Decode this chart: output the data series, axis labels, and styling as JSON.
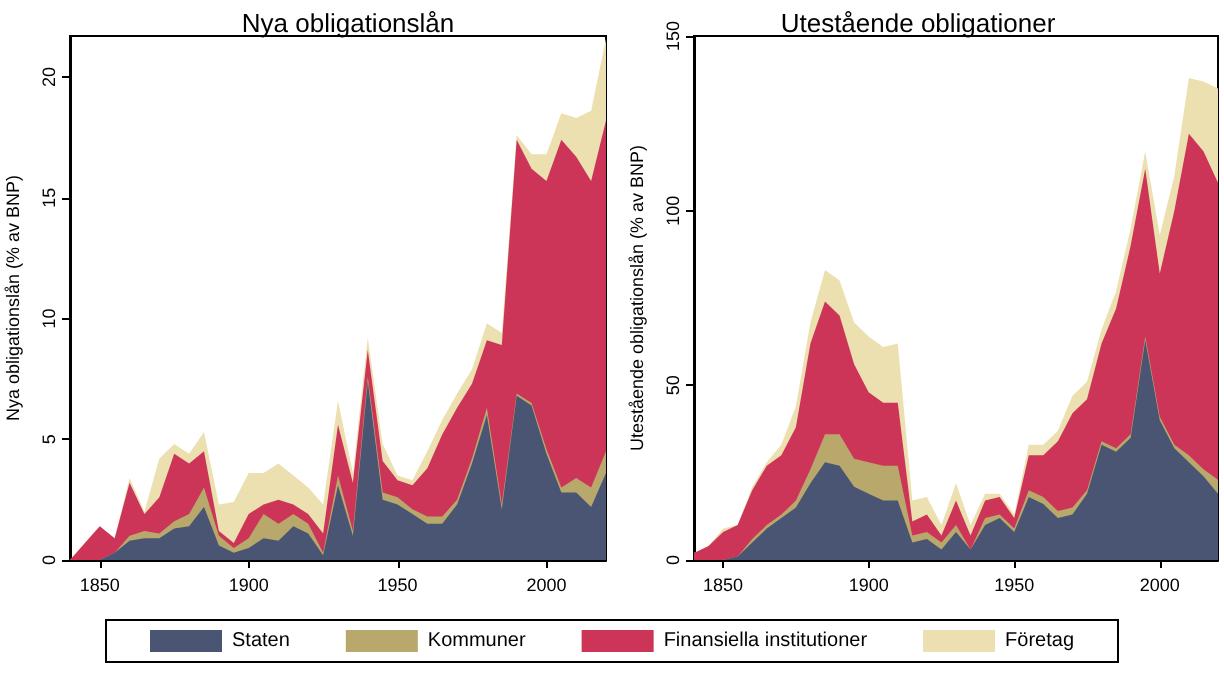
{
  "chart_data": [
    {
      "type": "area",
      "stacked": true,
      "title": "Nya obligationslån",
      "ylabel": "Nya obligationslån (% av BNP)",
      "legend": "bottom",
      "grid": false,
      "x": [
        1840,
        1845,
        1850,
        1855,
        1860,
        1865,
        1870,
        1875,
        1880,
        1885,
        1890,
        1895,
        1900,
        1905,
        1910,
        1915,
        1920,
        1925,
        1930,
        1935,
        1940,
        1945,
        1950,
        1955,
        1960,
        1965,
        1970,
        1975,
        1980,
        1985,
        1990,
        1995,
        2000,
        2005,
        2010,
        2015,
        2020
      ],
      "xlim": [
        1840,
        2020
      ],
      "xticks": [
        1850,
        1900,
        1950,
        2000
      ],
      "ylim": [
        0,
        21.7
      ],
      "yticks": [
        0,
        5,
        10,
        15,
        20
      ],
      "series": [
        {
          "name": "Staten",
          "color": "#4a5574",
          "values": [
            0,
            0,
            0,
            0.3,
            0.8,
            0.9,
            0.9,
            1.3,
            1.4,
            2.2,
            0.6,
            0.3,
            0.5,
            0.9,
            0.8,
            1.4,
            1.1,
            0.2,
            3.1,
            1.0,
            7.4,
            2.5,
            2.3,
            1.9,
            1.5,
            1.5,
            2.3,
            4.0,
            6.0,
            2.1,
            6.8,
            6.4,
            4.4,
            2.8,
            2.8,
            2.2,
            3.6
          ]
        },
        {
          "name": "Kommuner",
          "color": "#b8a86c",
          "values": [
            0,
            0,
            0,
            0,
            0.2,
            0.3,
            0.2,
            0.3,
            0.5,
            0.8,
            0.4,
            0.2,
            0.4,
            1.0,
            0.7,
            0.5,
            0.4,
            0.1,
            0.4,
            0.2,
            0.2,
            0.3,
            0.3,
            0.2,
            0.3,
            0.3,
            0.2,
            0.2,
            0.3,
            0.2,
            0.1,
            0.1,
            0.2,
            0.2,
            0.6,
            0.8,
            0.9
          ]
        },
        {
          "name": "Finansiella institutioner",
          "color": "#cc3558",
          "values": [
            0,
            0.7,
            1.4,
            0.6,
            2.2,
            0.7,
            1.5,
            2.8,
            2.1,
            1.5,
            0.2,
            0.2,
            1.0,
            0.4,
            1.0,
            0.4,
            0.4,
            0.8,
            2.1,
            2.0,
            1.1,
            1.3,
            0.7,
            1.0,
            2.0,
            3.4,
            3.8,
            3.1,
            2.8,
            6.6,
            10.5,
            9.7,
            11.1,
            14.4,
            13.3,
            12.7,
            13.7
          ]
        },
        {
          "name": "Företag",
          "color": "#ecdfb0",
          "values": [
            0,
            0,
            0,
            0,
            0.2,
            0.1,
            1.6,
            0.4,
            0.4,
            0.8,
            1.1,
            1.7,
            1.7,
            1.3,
            1.5,
            1.2,
            1.1,
            1.2,
            1.0,
            0.4,
            0.5,
            0.7,
            0.2,
            0.2,
            0.7,
            0.6,
            0.6,
            0.6,
            0.7,
            0.5,
            0.2,
            0.6,
            1.1,
            1.1,
            1.6,
            2.9,
            3.4
          ]
        }
      ]
    },
    {
      "type": "area",
      "stacked": true,
      "title": "Utestående obligationer",
      "ylabel": "Utestående obligationslån (% av BNP)",
      "legend": "bottom",
      "grid": false,
      "x": [
        1840,
        1845,
        1850,
        1855,
        1860,
        1865,
        1870,
        1875,
        1880,
        1885,
        1890,
        1895,
        1900,
        1905,
        1910,
        1915,
        1920,
        1925,
        1930,
        1935,
        1940,
        1945,
        1950,
        1955,
        1960,
        1965,
        1970,
        1975,
        1980,
        1985,
        1990,
        1995,
        2000,
        2005,
        2010,
        2015,
        2020
      ],
      "xlim": [
        1840,
        2020
      ],
      "xticks": [
        1850,
        1900,
        1950,
        2000
      ],
      "ylim": [
        0,
        150
      ],
      "yticks": [
        0,
        50,
        100,
        150
      ],
      "series": [
        {
          "name": "Staten",
          "color": "#4a5574",
          "values": [
            0,
            0,
            0,
            1,
            5,
            9,
            12,
            15,
            22,
            28,
            27,
            21,
            19,
            17,
            17,
            5,
            6,
            3,
            8,
            3,
            10,
            12,
            8,
            18,
            16,
            12,
            13,
            19,
            33,
            31,
            35,
            63,
            40,
            32,
            28,
            24,
            19
          ]
        },
        {
          "name": "Kommuner",
          "color": "#b8a86c",
          "values": [
            0,
            0,
            0,
            0,
            1,
            1,
            1,
            2,
            4,
            8,
            9,
            8,
            9,
            10,
            10,
            2,
            2,
            2,
            2,
            0,
            2,
            1,
            1,
            2,
            2,
            2,
            2,
            1,
            1,
            1,
            1,
            1,
            1,
            1,
            2,
            2,
            4
          ]
        },
        {
          "name": "Finansiella institutioner",
          "color": "#cc3558",
          "values": [
            2,
            4,
            8,
            9,
            14,
            17,
            17,
            21,
            36,
            38,
            34,
            27,
            20,
            18,
            18,
            4,
            5,
            2,
            7,
            4,
            5,
            5,
            3,
            10,
            12,
            20,
            27,
            26,
            28,
            40,
            54,
            48,
            41,
            67,
            92,
            91,
            85
          ]
        },
        {
          "name": "Företag",
          "color": "#ecdfb0",
          "values": [
            0,
            0,
            1,
            0,
            1,
            1,
            3,
            6,
            6,
            9,
            10,
            12,
            16,
            16,
            17,
            6,
            5,
            3,
            5,
            3,
            2,
            1,
            1,
            3,
            3,
            3,
            5,
            5,
            4,
            5,
            5,
            5,
            11,
            10,
            16,
            20,
            27
          ]
        }
      ]
    }
  ]
}
